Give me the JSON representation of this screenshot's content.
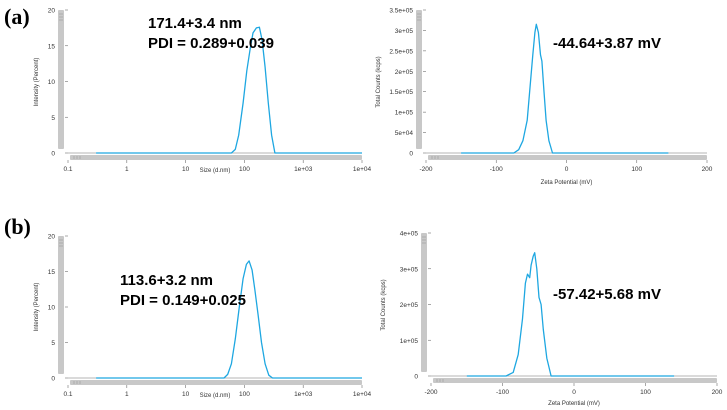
{
  "panels": [
    {
      "label": "(a)"
    },
    {
      "label": "(b)"
    }
  ],
  "colors": {
    "line": "#1ea7e1",
    "axis": "#6e6e6e",
    "scrollbar": "#c8c8c8",
    "text": "#333333"
  },
  "chart_data": [
    {
      "id": "size-a",
      "type": "line",
      "xscale": "log",
      "xlim": [
        0.1,
        10000
      ],
      "ylim": [
        0,
        20
      ],
      "xticks": [
        0.1,
        1,
        10,
        100,
        1000,
        10000
      ],
      "xtick_labels": [
        "0.1",
        "1",
        "10",
        "100",
        "1e+03",
        "1e+04"
      ],
      "yticks": [
        0,
        5,
        10,
        15,
        20
      ],
      "ytick_labels": [
        "0",
        "5",
        "10",
        "15",
        "20"
      ],
      "xlabel": "Size (d.nm)",
      "ylabel": "Intensity (Percent)",
      "annotation_lines": [
        "171.4+3.4 nm",
        "PDI = 0.289+0.039"
      ],
      "series": [
        {
          "x": [
            0.3,
            60,
            70,
            80,
            95,
            110,
            125,
            140,
            160,
            180,
            200,
            225,
            255,
            290,
            330,
            10000
          ],
          "y": [
            0,
            0,
            0.5,
            2.5,
            7,
            11.5,
            14.5,
            16.8,
            17.5,
            17.6,
            15.8,
            12,
            7,
            2.5,
            0,
            0
          ]
        }
      ]
    },
    {
      "id": "zeta-a",
      "type": "line",
      "xscale": "linear",
      "xlim": [
        -200,
        200
      ],
      "ylim": [
        0,
        350000
      ],
      "xticks": [
        -200,
        -100,
        0,
        100,
        200
      ],
      "xtick_labels": [
        "-200",
        "-100",
        "0",
        "100",
        "200"
      ],
      "yticks": [
        0,
        50000,
        100000,
        150000,
        200000,
        250000,
        300000,
        350000
      ],
      "ytick_labels": [
        "0",
        "5e+04",
        "1e+05",
        "1.5e+05",
        "2e+05",
        "2.5e+05",
        "3e+05",
        "3.5e+05"
      ],
      "xlabel": "Zeta Potential (mV)",
      "ylabel": "Total Counts (kcps)",
      "annotation_lines": [
        "-44.64+3.87 mV"
      ],
      "series": [
        {
          "x": [
            -150,
            -75,
            -68,
            -62,
            -56,
            -52,
            -48,
            -45,
            -43,
            -40,
            -37,
            -35,
            -32,
            -29,
            -25,
            -20,
            145
          ],
          "y": [
            0,
            0,
            8000,
            30000,
            80000,
            160000,
            240000,
            295000,
            315000,
            295000,
            240000,
            225000,
            150000,
            80000,
            30000,
            0,
            0
          ]
        }
      ]
    },
    {
      "id": "size-b",
      "type": "line",
      "xscale": "log",
      "xlim": [
        0.1,
        10000
      ],
      "ylim": [
        0,
        20
      ],
      "xticks": [
        0.1,
        1,
        10,
        100,
        1000,
        10000
      ],
      "xtick_labels": [
        "0.1",
        "1",
        "10",
        "100",
        "1e+03",
        "1e+04"
      ],
      "yticks": [
        0,
        5,
        10,
        15,
        20
      ],
      "ytick_labels": [
        "0",
        "5",
        "10",
        "15",
        "20"
      ],
      "xlabel": "Size (d.nm)",
      "ylabel": "Intensity (Percent)",
      "annotation_lines": [
        "113.6+3.2 nm",
        "PDI = 0.149+0.025"
      ],
      "series": [
        {
          "x": [
            0.3,
            45,
            52,
            60,
            70,
            82,
            95,
            108,
            120,
            135,
            150,
            170,
            195,
            225,
            260,
            300,
            10000
          ],
          "y": [
            0,
            0,
            0.5,
            2,
            5.5,
            10,
            14,
            16,
            16.5,
            15.2,
            12.5,
            9,
            5,
            2,
            0.4,
            0,
            0
          ]
        }
      ]
    },
    {
      "id": "zeta-b",
      "type": "line",
      "xscale": "linear",
      "xlim": [
        -200,
        200
      ],
      "ylim": [
        0,
        400000
      ],
      "xticks": [
        -200,
        -100,
        0,
        100,
        200
      ],
      "xtick_labels": [
        "-200",
        "-100",
        "0",
        "100",
        "200"
      ],
      "yticks": [
        0,
        100000,
        200000,
        300000,
        400000
      ],
      "ytick_labels": [
        "0",
        "1e+05",
        "2e+05",
        "3e+05",
        "4e+05"
      ],
      "xlabel": "Zeta Potential (mV)",
      "ylabel": "Total Counts (kcps)",
      "annotation_lines": [
        "-57.42+5.68 mV"
      ],
      "series": [
        {
          "x": [
            -150,
            -95,
            -85,
            -78,
            -72,
            -68,
            -65,
            -62,
            -60,
            -57,
            -55,
            -52,
            -49,
            -46,
            -43,
            -38,
            -32,
            140
          ],
          "y": [
            0,
            0,
            10000,
            60000,
            160000,
            260000,
            285000,
            275000,
            310000,
            335000,
            345000,
            300000,
            220000,
            200000,
            130000,
            50000,
            0,
            0
          ]
        }
      ]
    }
  ]
}
